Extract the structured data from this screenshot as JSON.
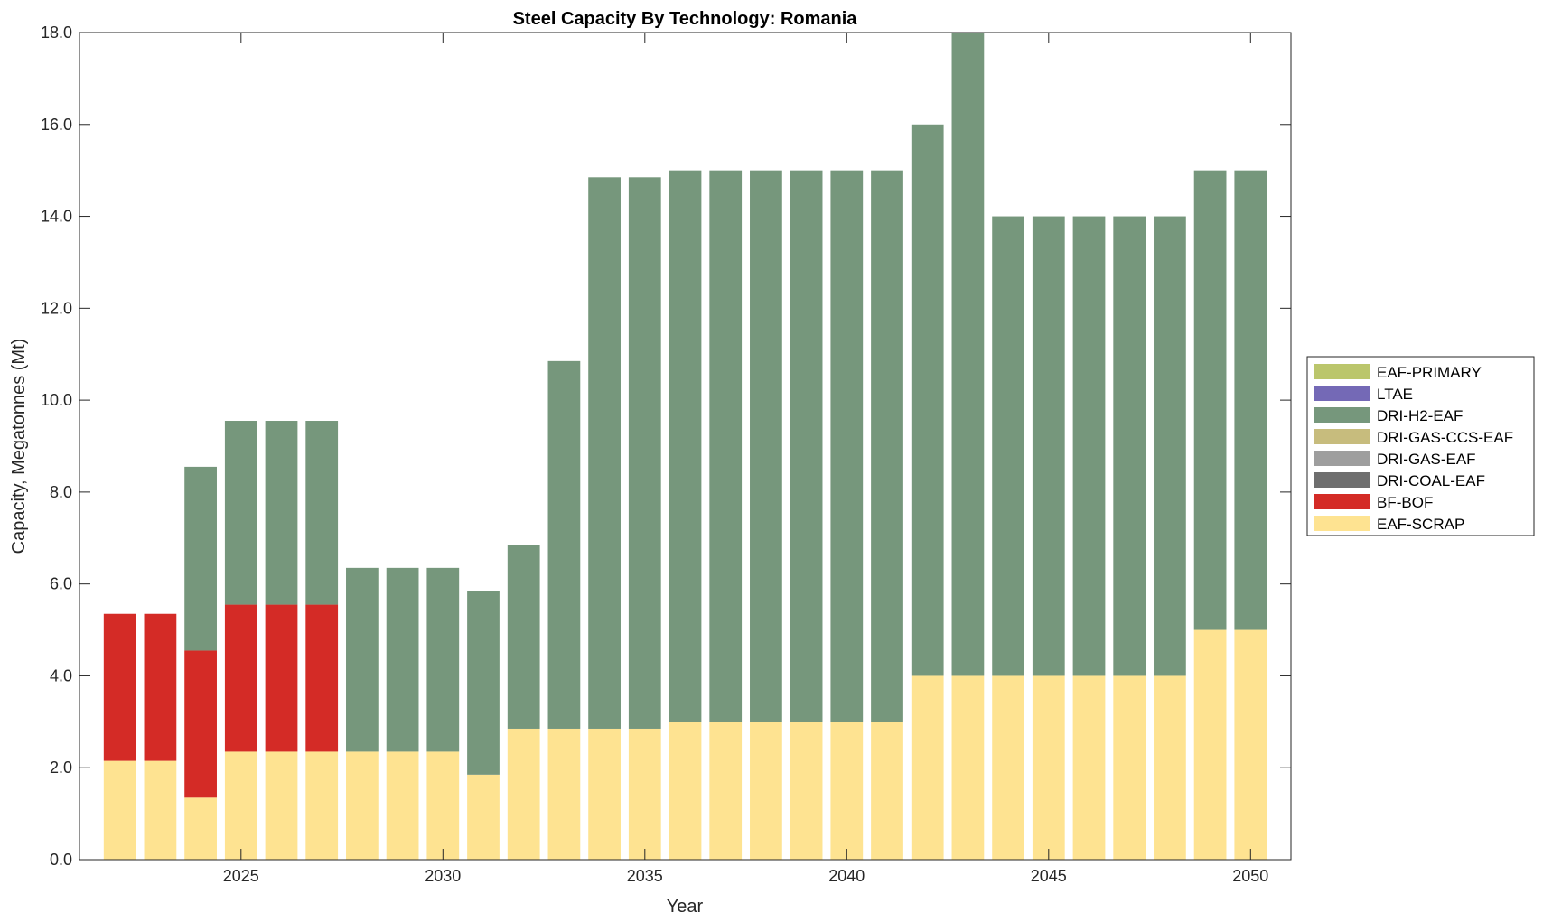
{
  "chart_data": {
    "type": "bar",
    "stacked": true,
    "title": "Steel Capacity By Technology: Romania",
    "xlabel": "Year",
    "ylabel": "Capacity, Megatonnes (Mt)",
    "xlim": [
      2021,
      2051
    ],
    "ylim": [
      0,
      18
    ],
    "xticks": [
      2025,
      2030,
      2035,
      2040,
      2045,
      2050
    ],
    "xtick_labels": [
      "2025",
      "2030",
      "2035",
      "2040",
      "2045",
      "2050"
    ],
    "yticks": [
      0,
      2,
      4,
      6,
      8,
      10,
      12,
      14,
      16,
      18
    ],
    "ytick_labels": [
      "0.0",
      "2.0",
      "4.0",
      "6.0",
      "8.0",
      "10.0",
      "12.0",
      "14.0",
      "16.0",
      "18.0"
    ],
    "grid": false,
    "legend_position": "outside-right",
    "categories": [
      2022,
      2023,
      2024,
      2025,
      2026,
      2027,
      2028,
      2029,
      2030,
      2031,
      2032,
      2033,
      2034,
      2035,
      2036,
      2037,
      2038,
      2039,
      2040,
      2041,
      2042,
      2043,
      2044,
      2045,
      2046,
      2047,
      2048,
      2049,
      2050
    ],
    "series": [
      {
        "name": "EAF-SCRAP",
        "color": "#FEE391",
        "values": [
          2.15,
          2.15,
          1.35,
          2.35,
          2.35,
          2.35,
          2.35,
          2.35,
          2.35,
          1.85,
          2.85,
          2.85,
          2.85,
          2.85,
          3,
          3,
          3,
          3,
          3,
          3,
          4,
          4,
          4,
          4,
          4,
          4,
          4,
          5,
          5
        ]
      },
      {
        "name": "BF-BOF",
        "color": "#D42B26",
        "values": [
          3.2,
          3.2,
          3.2,
          3.2,
          3.2,
          3.2,
          0,
          0,
          0,
          0,
          0,
          0,
          0,
          0,
          0,
          0,
          0,
          0,
          0,
          0,
          0,
          0,
          0,
          0,
          0,
          0,
          0,
          0,
          0
        ]
      },
      {
        "name": "DRI-COAL-EAF",
        "color": "#6E6E6E",
        "values": [
          0,
          0,
          0,
          0,
          0,
          0,
          0,
          0,
          0,
          0,
          0,
          0,
          0,
          0,
          0,
          0,
          0,
          0,
          0,
          0,
          0,
          0,
          0,
          0,
          0,
          0,
          0,
          0,
          0
        ]
      },
      {
        "name": "DRI-GAS-EAF",
        "color": "#9E9E9E",
        "values": [
          0,
          0,
          0,
          0,
          0,
          0,
          0,
          0,
          0,
          0,
          0,
          0,
          0,
          0,
          0,
          0,
          0,
          0,
          0,
          0,
          0,
          0,
          0,
          0,
          0,
          0,
          0,
          0,
          0
        ]
      },
      {
        "name": "DRI-GAS-CCS-EAF",
        "color": "#C7BC7D",
        "values": [
          0,
          0,
          0,
          0,
          0,
          0,
          0,
          0,
          0,
          0,
          0,
          0,
          0,
          0,
          0,
          0,
          0,
          0,
          0,
          0,
          0,
          0,
          0,
          0,
          0,
          0,
          0,
          0,
          0
        ]
      },
      {
        "name": "DRI-H2-EAF",
        "color": "#76977C",
        "values": [
          0,
          0,
          4,
          4,
          4,
          4,
          4,
          4,
          4,
          4,
          4,
          8,
          12,
          12,
          12,
          12,
          12,
          12,
          12,
          12,
          12,
          14,
          10,
          10,
          10,
          10,
          10,
          10,
          10
        ]
      },
      {
        "name": "LTAE",
        "color": "#7469B6",
        "values": [
          0,
          0,
          0,
          0,
          0,
          0,
          0,
          0,
          0,
          0,
          0,
          0,
          0,
          0,
          0,
          0,
          0,
          0,
          0,
          0,
          0,
          0,
          0,
          0,
          0,
          0,
          0,
          0,
          0
        ]
      },
      {
        "name": "EAF-PRIMARY",
        "color": "#BBC66C",
        "values": [
          0,
          0,
          0,
          0,
          0,
          0,
          0,
          0,
          0,
          0,
          0,
          0,
          0,
          0,
          0,
          0,
          0,
          0,
          0,
          0,
          0,
          0,
          0,
          0,
          0,
          0,
          0,
          0,
          0
        ]
      }
    ],
    "legend_order": [
      "EAF-PRIMARY",
      "LTAE",
      "DRI-H2-EAF",
      "DRI-GAS-CCS-EAF",
      "DRI-GAS-EAF",
      "DRI-COAL-EAF",
      "BF-BOF",
      "EAF-SCRAP"
    ]
  }
}
